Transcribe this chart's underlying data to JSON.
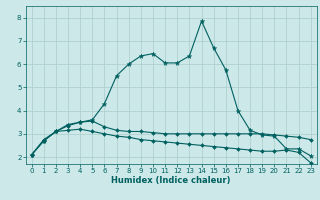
{
  "title": "",
  "xlabel": "Humidex (Indice chaleur)",
  "ylabel": "",
  "bg_color": "#cce8e8",
  "grid_color": "#b0d0d0",
  "line_color": "#006060",
  "xlim": [
    -0.5,
    23.5
  ],
  "ylim": [
    1.7,
    8.5
  ],
  "xticks": [
    0,
    1,
    2,
    3,
    4,
    5,
    6,
    7,
    8,
    9,
    10,
    11,
    12,
    13,
    14,
    15,
    16,
    17,
    18,
    19,
    20,
    21,
    22,
    23
  ],
  "yticks": [
    2,
    3,
    4,
    5,
    6,
    7,
    8
  ],
  "line1_x": [
    0,
    1,
    2,
    3,
    4,
    5,
    6,
    7,
    8,
    9,
    10,
    11,
    12,
    13,
    14,
    15,
    16,
    17,
    18,
    19,
    20,
    21,
    22,
    23
  ],
  "line1_y": [
    2.1,
    2.7,
    3.1,
    3.4,
    3.5,
    3.6,
    4.3,
    5.5,
    6.0,
    6.35,
    6.45,
    6.05,
    6.05,
    6.35,
    7.85,
    6.7,
    5.75,
    4.0,
    3.15,
    2.95,
    2.9,
    2.35,
    2.35,
    2.05
  ],
  "line2_x": [
    0,
    1,
    2,
    3,
    4,
    5,
    6,
    7,
    8,
    9,
    10,
    11,
    12,
    13,
    14,
    15,
    16,
    17,
    18,
    19,
    20,
    21,
    22,
    23
  ],
  "line2_y": [
    2.1,
    2.75,
    3.1,
    3.35,
    3.5,
    3.55,
    3.3,
    3.15,
    3.1,
    3.1,
    3.05,
    3.0,
    3.0,
    3.0,
    3.0,
    3.0,
    3.0,
    3.0,
    3.0,
    3.0,
    2.95,
    2.9,
    2.85,
    2.75
  ],
  "line3_x": [
    0,
    1,
    2,
    3,
    4,
    5,
    6,
    7,
    8,
    9,
    10,
    11,
    12,
    13,
    14,
    15,
    16,
    17,
    18,
    19,
    20,
    21,
    22,
    23
  ],
  "line3_y": [
    2.1,
    2.7,
    3.1,
    3.15,
    3.2,
    3.1,
    3.0,
    2.9,
    2.85,
    2.75,
    2.7,
    2.65,
    2.6,
    2.55,
    2.5,
    2.45,
    2.4,
    2.35,
    2.3,
    2.25,
    2.25,
    2.3,
    2.2,
    1.75
  ],
  "xlabel_fontsize": 6.0,
  "tick_fontsize": 5.0,
  "linewidth": 0.8,
  "marker_size_star": 3.5,
  "marker_size_dot": 2.0
}
